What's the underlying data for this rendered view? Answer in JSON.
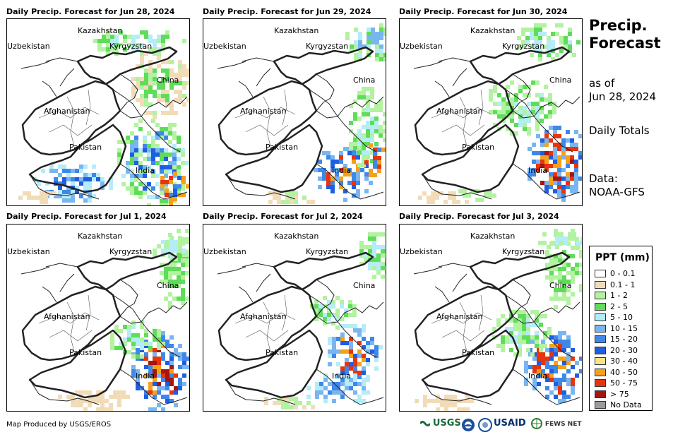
{
  "panels": [
    {
      "title": "Daily Precip. Forecast for Jun 28, 2024"
    },
    {
      "title": "Daily Precip. Forecast for Jun 29, 2024"
    },
    {
      "title": "Daily Precip. Forecast for Jun 30, 2024"
    },
    {
      "title": "Daily Precip. Forecast for Jul 1, 2024"
    },
    {
      "title": "Daily Precip. Forecast for Jul 2, 2024"
    },
    {
      "title": "Daily Precip. Forecast for Jul 3, 2024"
    }
  ],
  "map_labels": {
    "kazakhstan": "Kazakhstan",
    "uzbekistan": "Uzbekistan",
    "kyrgyzstan": "Kyrgyzstan",
    "china": "China",
    "afghanistan": "Afghanistan",
    "pakistan": "Pakistan",
    "india": "India"
  },
  "sidebar": {
    "title_line1": "Precip.",
    "title_line2": "Forecast",
    "as_of_label": "as of",
    "as_of_date": "Jun 28, 2024",
    "totals": "Daily Totals",
    "data_label": "Data:",
    "data_source": "NOAA-GFS"
  },
  "legend": {
    "title": "PPT (mm)",
    "items": [
      {
        "label": "0 - 0.1",
        "color": "#ffffff"
      },
      {
        "label": "0.1 - 1",
        "color": "#f2dcb8"
      },
      {
        "label": "1 - 2",
        "color": "#b2f2a0"
      },
      {
        "label": "2 - 5",
        "color": "#5fdc5a"
      },
      {
        "label": "5 - 10",
        "color": "#b4ecf8"
      },
      {
        "label": "10 - 15",
        "color": "#79b6f0"
      },
      {
        "label": "15 - 20",
        "color": "#3f88e8"
      },
      {
        "label": "20 - 30",
        "color": "#1f5ee0"
      },
      {
        "label": "30 - 40",
        "color": "#fbe38a"
      },
      {
        "label": "40 - 50",
        "color": "#f6a11a"
      },
      {
        "label": "50 - 75",
        "color": "#e8340c"
      },
      {
        "label": "> 75",
        "color": "#a4160e"
      },
      {
        "label": "No Data",
        "color": "#9b9b9b"
      }
    ]
  },
  "credit": "Map Produced by USGS/EROS",
  "logos": [
    "USGS",
    "USAID",
    "FEWS NET"
  ]
}
